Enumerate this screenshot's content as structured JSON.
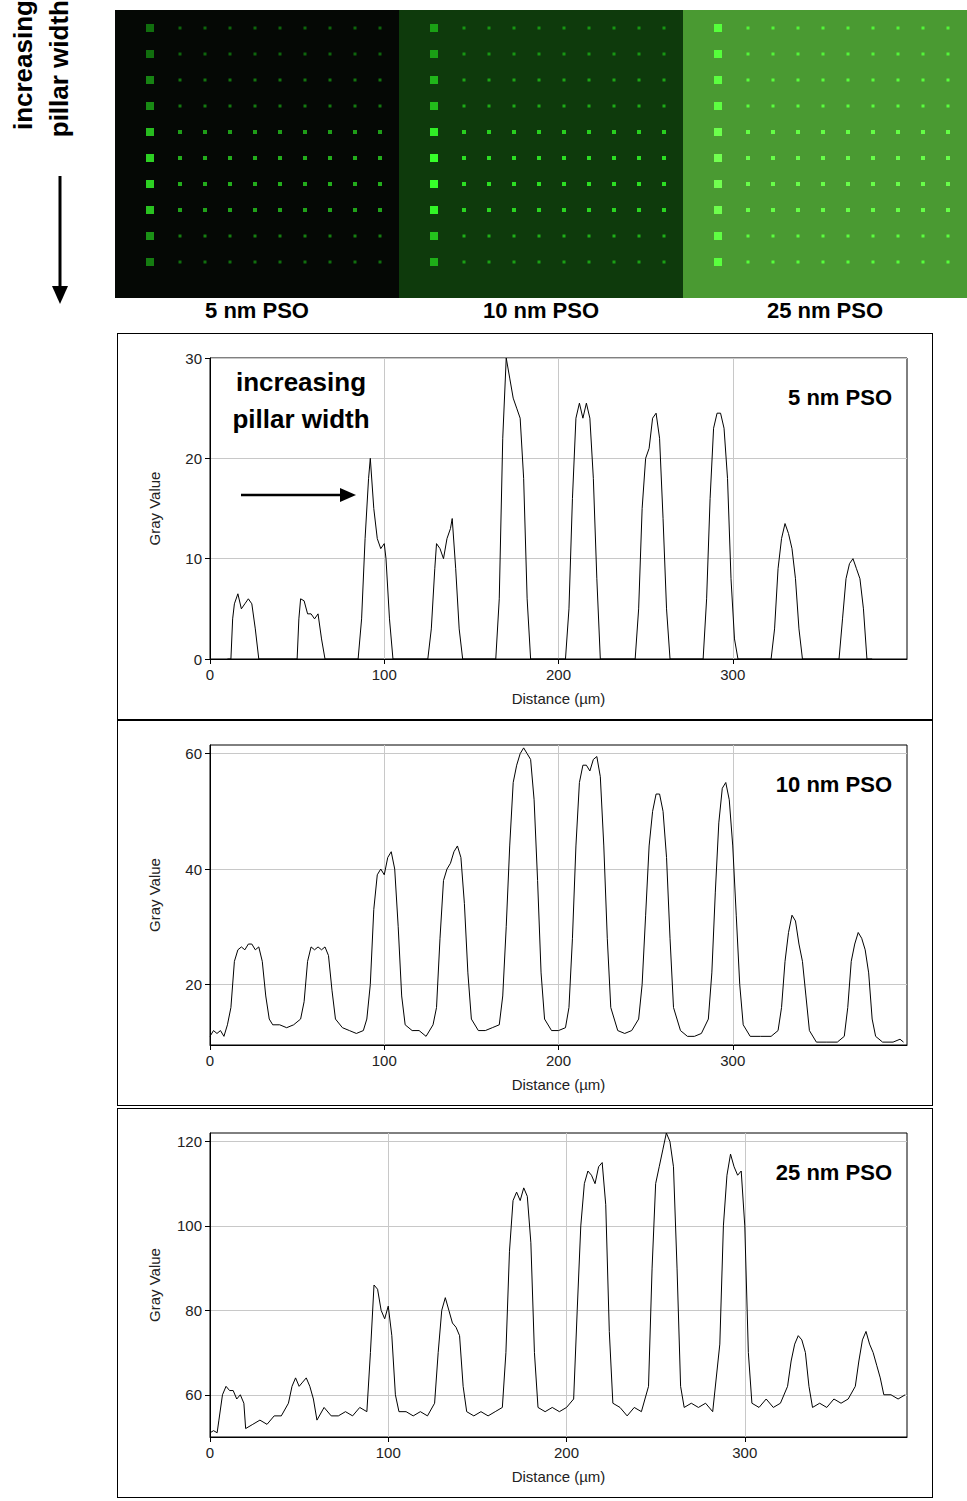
{
  "side_label": "increasing pillar width",
  "images": [
    {
      "label": "5 nm PSO",
      "color": "#050805"
    },
    {
      "label": "10 nm PSO",
      "color": "#0e3a0c"
    },
    {
      "label": "25 nm PSO",
      "color": "#4a9a32"
    }
  ],
  "chart_data": [
    {
      "type": "line",
      "title": "5 nm PSO",
      "annotation": "increasing pillar width",
      "x_label": "Distance (µm)",
      "y_label": "Gray Value",
      "color": "#000000",
      "grid": true,
      "xlim": [
        0,
        400
      ],
      "ylim": [
        0,
        30
      ],
      "xticks": [
        0,
        100,
        200,
        300
      ],
      "yticks": [
        0,
        10,
        20,
        30
      ],
      "x": [
        10,
        12,
        13,
        14,
        16,
        18,
        20,
        22,
        24,
        26,
        28,
        48,
        50,
        51,
        52,
        54,
        56,
        58,
        60,
        62,
        64,
        66,
        85,
        87,
        89,
        91,
        92,
        94,
        96,
        98,
        100,
        101,
        103,
        105,
        125,
        127,
        129,
        130,
        132,
        134,
        136,
        138,
        139,
        141,
        143,
        145,
        164,
        166,
        168,
        170,
        172,
        174,
        176,
        178,
        180,
        182,
        184,
        204,
        206,
        208,
        210,
        212,
        214,
        216,
        218,
        220,
        222,
        224,
        244,
        246,
        248,
        250,
        252,
        254,
        256,
        258,
        260,
        262,
        264,
        283,
        285,
        287,
        289,
        291,
        293,
        295,
        297,
        299,
        301,
        303,
        322,
        324,
        326,
        328,
        330,
        332,
        334,
        336,
        338,
        340,
        361,
        363,
        365,
        367,
        369,
        371,
        373,
        375,
        377,
        380
      ],
      "values": [
        0,
        0,
        4,
        5.5,
        6.5,
        5,
        5.5,
        6,
        5.5,
        3,
        0,
        0,
        0,
        4,
        6,
        5.8,
        4.5,
        4.5,
        4,
        4.5,
        2,
        0,
        0,
        4,
        12,
        18,
        20,
        15,
        12,
        11,
        11.5,
        10,
        4,
        0,
        0,
        3,
        9,
        11.5,
        11,
        10,
        12,
        13,
        14,
        9,
        3,
        0,
        0,
        6,
        22,
        30,
        28,
        26,
        25,
        24,
        18,
        6,
        0,
        0,
        5,
        16,
        24,
        25.5,
        24,
        25.5,
        24,
        18,
        8,
        0,
        0,
        5,
        15,
        20,
        21,
        24,
        24.5,
        22,
        14,
        5,
        0,
        0,
        6,
        16,
        23,
        24.5,
        24.5,
        23,
        18,
        8,
        2,
        0,
        0,
        3,
        9,
        12,
        13.5,
        12.5,
        11,
        8,
        3,
        0,
        0,
        4,
        8,
        9.5,
        10,
        9,
        8,
        5,
        0,
        0
      ]
    },
    {
      "type": "line",
      "title": "10 nm PSO",
      "x_label": "Distance (µm)",
      "y_label": "Gray Value",
      "color": "#000000",
      "grid": true,
      "xlim": [
        0,
        400
      ],
      "ylim": [
        9.5,
        61.5
      ],
      "xticks": [
        0,
        100,
        200,
        300
      ],
      "yticks": [
        20,
        40,
        60
      ],
      "x": [
        0,
        2,
        4,
        6,
        8,
        10,
        12,
        14,
        16,
        18,
        20,
        22,
        24,
        26,
        28,
        30,
        32,
        34,
        36,
        40,
        44,
        48,
        52,
        54,
        56,
        58,
        60,
        62,
        64,
        66,
        68,
        70,
        72,
        76,
        80,
        84,
        88,
        90,
        92,
        94,
        96,
        98,
        100,
        102,
        104,
        106,
        108,
        110,
        112,
        116,
        120,
        124,
        128,
        130,
        132,
        134,
        136,
        138,
        140,
        142,
        144,
        146,
        148,
        150,
        154,
        158,
        162,
        166,
        168,
        170,
        172,
        174,
        176,
        178,
        180,
        182,
        184,
        186,
        188,
        190,
        192,
        196,
        200,
        204,
        206,
        208,
        210,
        212,
        214,
        216,
        218,
        220,
        222,
        224,
        226,
        228,
        230,
        234,
        238,
        242,
        246,
        248,
        250,
        252,
        254,
        256,
        258,
        260,
        262,
        264,
        266,
        270,
        274,
        278,
        282,
        286,
        288,
        290,
        292,
        294,
        296,
        298,
        300,
        302,
        304,
        306,
        310,
        316,
        322,
        326,
        328,
        330,
        332,
        334,
        336,
        338,
        340,
        342,
        344,
        348,
        354,
        360,
        364,
        366,
        368,
        370,
        372,
        374,
        376,
        378,
        380,
        382,
        386,
        392,
        396,
        398
      ],
      "values": [
        11,
        12,
        11.5,
        12,
        11,
        13,
        16,
        24,
        26,
        26.5,
        26,
        27,
        27,
        26,
        26.5,
        24,
        18,
        14,
        13,
        13,
        12.5,
        13,
        14,
        17,
        24,
        26.5,
        26,
        26.5,
        26,
        26.5,
        25,
        19,
        14,
        12.5,
        12,
        11.5,
        12,
        14,
        20,
        33,
        39,
        40,
        39,
        42,
        43,
        40,
        30,
        18,
        13,
        12,
        12,
        11,
        13,
        16,
        28,
        38,
        40,
        41,
        43,
        44,
        42,
        34,
        22,
        14,
        12,
        12,
        12.5,
        13,
        18,
        30,
        44,
        55,
        58,
        60,
        61,
        60,
        59,
        52,
        38,
        22,
        14,
        12,
        12,
        12.5,
        16,
        28,
        44,
        55,
        58,
        58,
        57,
        59,
        59.5,
        56,
        44,
        28,
        16,
        12,
        11.5,
        12,
        14,
        20,
        32,
        44,
        50,
        53,
        53,
        50,
        42,
        28,
        16,
        12,
        11,
        11,
        11.5,
        14,
        22,
        36,
        48,
        54,
        55,
        52,
        44,
        32,
        20,
        13,
        11,
        11,
        11,
        12,
        16,
        24,
        29,
        32,
        31,
        27,
        24,
        18,
        12,
        10,
        10,
        10,
        11,
        16,
        24,
        27,
        29,
        28,
        26,
        22,
        14,
        11,
        10,
        10,
        10.5,
        10
      ]
    },
    {
      "type": "line",
      "title": "25 nm PSO",
      "x_label": "Distance (µm)",
      "y_label": "Gray Value",
      "color": "#000000",
      "grid": true,
      "xlim": [
        0,
        391
      ],
      "ylim": [
        50,
        122
      ],
      "xticks": [
        0,
        100,
        200,
        300
      ],
      "yticks": [
        60,
        80,
        100,
        120
      ],
      "x": [
        0,
        2,
        4,
        5,
        7,
        9,
        11,
        13,
        15,
        17,
        19,
        20,
        24,
        28,
        32,
        36,
        40,
        44,
        46,
        48,
        50,
        52,
        54,
        56,
        58,
        60,
        64,
        68,
        72,
        76,
        80,
        84,
        88,
        90,
        92,
        94,
        96,
        98,
        100,
        102,
        104,
        106,
        110,
        114,
        118,
        122,
        126,
        128,
        130,
        132,
        134,
        136,
        138,
        140,
        142,
        144,
        148,
        152,
        156,
        160,
        164,
        166,
        168,
        170,
        172,
        174,
        176,
        178,
        180,
        182,
        184,
        188,
        192,
        196,
        200,
        204,
        206,
        208,
        210,
        212,
        214,
        216,
        218,
        220,
        222,
        224,
        226,
        230,
        234,
        238,
        242,
        246,
        248,
        250,
        252,
        254,
        256,
        258,
        260,
        262,
        264,
        266,
        270,
        274,
        278,
        282,
        286,
        288,
        290,
        292,
        294,
        296,
        298,
        300,
        302,
        304,
        308,
        312,
        316,
        320,
        324,
        326,
        328,
        330,
        332,
        334,
        336,
        338,
        342,
        346,
        350,
        354,
        358,
        362,
        364,
        366,
        368,
        370,
        372,
        374,
        376,
        378,
        382,
        386,
        390
      ],
      "values": [
        51,
        51.5,
        51,
        54,
        60,
        62,
        61,
        61,
        59,
        60,
        58,
        52,
        53,
        54,
        53,
        55,
        55,
        58,
        62,
        64,
        62,
        63,
        64,
        62,
        59,
        54,
        57,
        55,
        55,
        56,
        55,
        57,
        56,
        70,
        86,
        85,
        80,
        78,
        81,
        74,
        60,
        56,
        56,
        55,
        56,
        55,
        58,
        70,
        80,
        83,
        80,
        77,
        76,
        74,
        62,
        56,
        55,
        56,
        55,
        56,
        57,
        70,
        94,
        106,
        108,
        106,
        109,
        107,
        96,
        70,
        57,
        56,
        57,
        56,
        57,
        59,
        80,
        100,
        110,
        113,
        112,
        110,
        114,
        115,
        105,
        75,
        58,
        57,
        55,
        57,
        56,
        62,
        90,
        110,
        114,
        118,
        122,
        120,
        114,
        90,
        62,
        57,
        58,
        57,
        58,
        56,
        72,
        100,
        112,
        117,
        114,
        112,
        113,
        100,
        70,
        58,
        57,
        59,
        57,
        58,
        62,
        68,
        72,
        74,
        73,
        70,
        62,
        57,
        58,
        57,
        59,
        58,
        59,
        62,
        68,
        73,
        75,
        72,
        70,
        67,
        64,
        60,
        60,
        59,
        60
      ]
    }
  ]
}
